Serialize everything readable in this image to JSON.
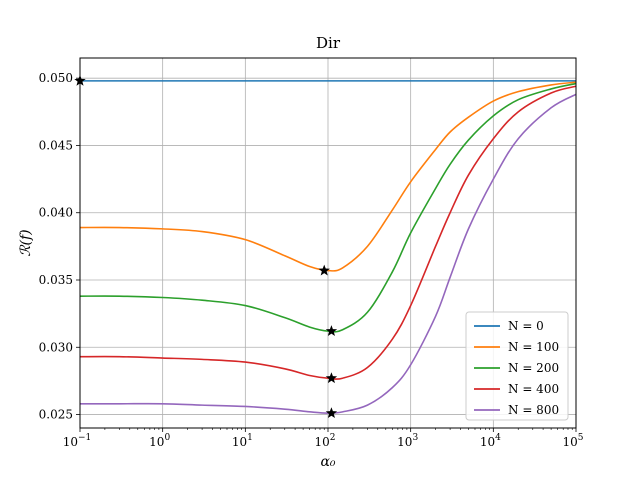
{
  "chart_data": {
    "type": "line",
    "title": "Dir",
    "xlabel": "α₀",
    "ylabel": "ℛ(f)",
    "xscale": "log",
    "xlim": [
      0.1,
      100000
    ],
    "ylim": [
      0.024,
      0.0515
    ],
    "grid": true,
    "legend_position": "lower-right",
    "x_ticks": [
      {
        "value": 0.1,
        "label": "10",
        "exp": "−1"
      },
      {
        "value": 1,
        "label": "10",
        "exp": "0"
      },
      {
        "value": 10,
        "label": "10",
        "exp": "1"
      },
      {
        "value": 100,
        "label": "10",
        "exp": "2"
      },
      {
        "value": 1000,
        "label": "10",
        "exp": "3"
      },
      {
        "value": 10000,
        "label": "10",
        "exp": "4"
      },
      {
        "value": 100000,
        "label": "10",
        "exp": "5"
      }
    ],
    "y_ticks": [
      {
        "value": 0.025,
        "label": "0.025"
      },
      {
        "value": 0.03,
        "label": "0.030"
      },
      {
        "value": 0.035,
        "label": "0.035"
      },
      {
        "value": 0.04,
        "label": "0.040"
      },
      {
        "value": 0.045,
        "label": "0.045"
      },
      {
        "value": 0.05,
        "label": "0.050"
      }
    ],
    "x": [
      0.1,
      0.3,
      1,
      3,
      10,
      30,
      60,
      100,
      150,
      300,
      600,
      1000,
      2000,
      3000,
      5000,
      10000,
      20000,
      50000,
      100000
    ],
    "series": [
      {
        "name": "N = 0",
        "color": "#1f77b4",
        "values": [
          0.0498,
          0.0498,
          0.0498,
          0.0498,
          0.0498,
          0.0498,
          0.0498,
          0.0498,
          0.0498,
          0.0498,
          0.0498,
          0.0498,
          0.0498,
          0.0498,
          0.0498,
          0.0498,
          0.0498,
          0.0498,
          0.0498
        ],
        "min_point": {
          "x": 0.1,
          "y": 0.0498
        }
      },
      {
        "name": "N = 100",
        "color": "#ff7f0e",
        "values": [
          0.0389,
          0.0389,
          0.0388,
          0.0386,
          0.038,
          0.0368,
          0.036,
          0.0357,
          0.0359,
          0.0375,
          0.0402,
          0.0423,
          0.0447,
          0.046,
          0.0471,
          0.0483,
          0.049,
          0.0495,
          0.0497
        ],
        "min_point": {
          "x": 90,
          "y": 0.0357
        }
      },
      {
        "name": "N = 200",
        "color": "#2ca02c",
        "values": [
          0.0338,
          0.0338,
          0.0337,
          0.0335,
          0.0331,
          0.0322,
          0.0315,
          0.0312,
          0.0313,
          0.0326,
          0.0356,
          0.0385,
          0.0418,
          0.0436,
          0.0454,
          0.0472,
          0.0484,
          0.0492,
          0.0496
        ],
        "min_point": {
          "x": 110,
          "y": 0.0312
        }
      },
      {
        "name": "N = 400",
        "color": "#d62728",
        "values": [
          0.0293,
          0.0293,
          0.0292,
          0.0291,
          0.0289,
          0.0284,
          0.0279,
          0.0277,
          0.0277,
          0.0285,
          0.0306,
          0.0331,
          0.0375,
          0.04,
          0.0428,
          0.0455,
          0.0475,
          0.0489,
          0.0494
        ],
        "min_point": {
          "x": 110,
          "y": 0.0277
        }
      },
      {
        "name": "N = 800",
        "color": "#9467bd",
        "values": [
          0.0258,
          0.0258,
          0.0258,
          0.0257,
          0.0256,
          0.0254,
          0.0252,
          0.0251,
          0.0252,
          0.0257,
          0.027,
          0.0287,
          0.0323,
          0.0352,
          0.0388,
          0.0425,
          0.0455,
          0.0478,
          0.0488
        ],
        "min_point": {
          "x": 110,
          "y": 0.0251
        }
      }
    ]
  }
}
